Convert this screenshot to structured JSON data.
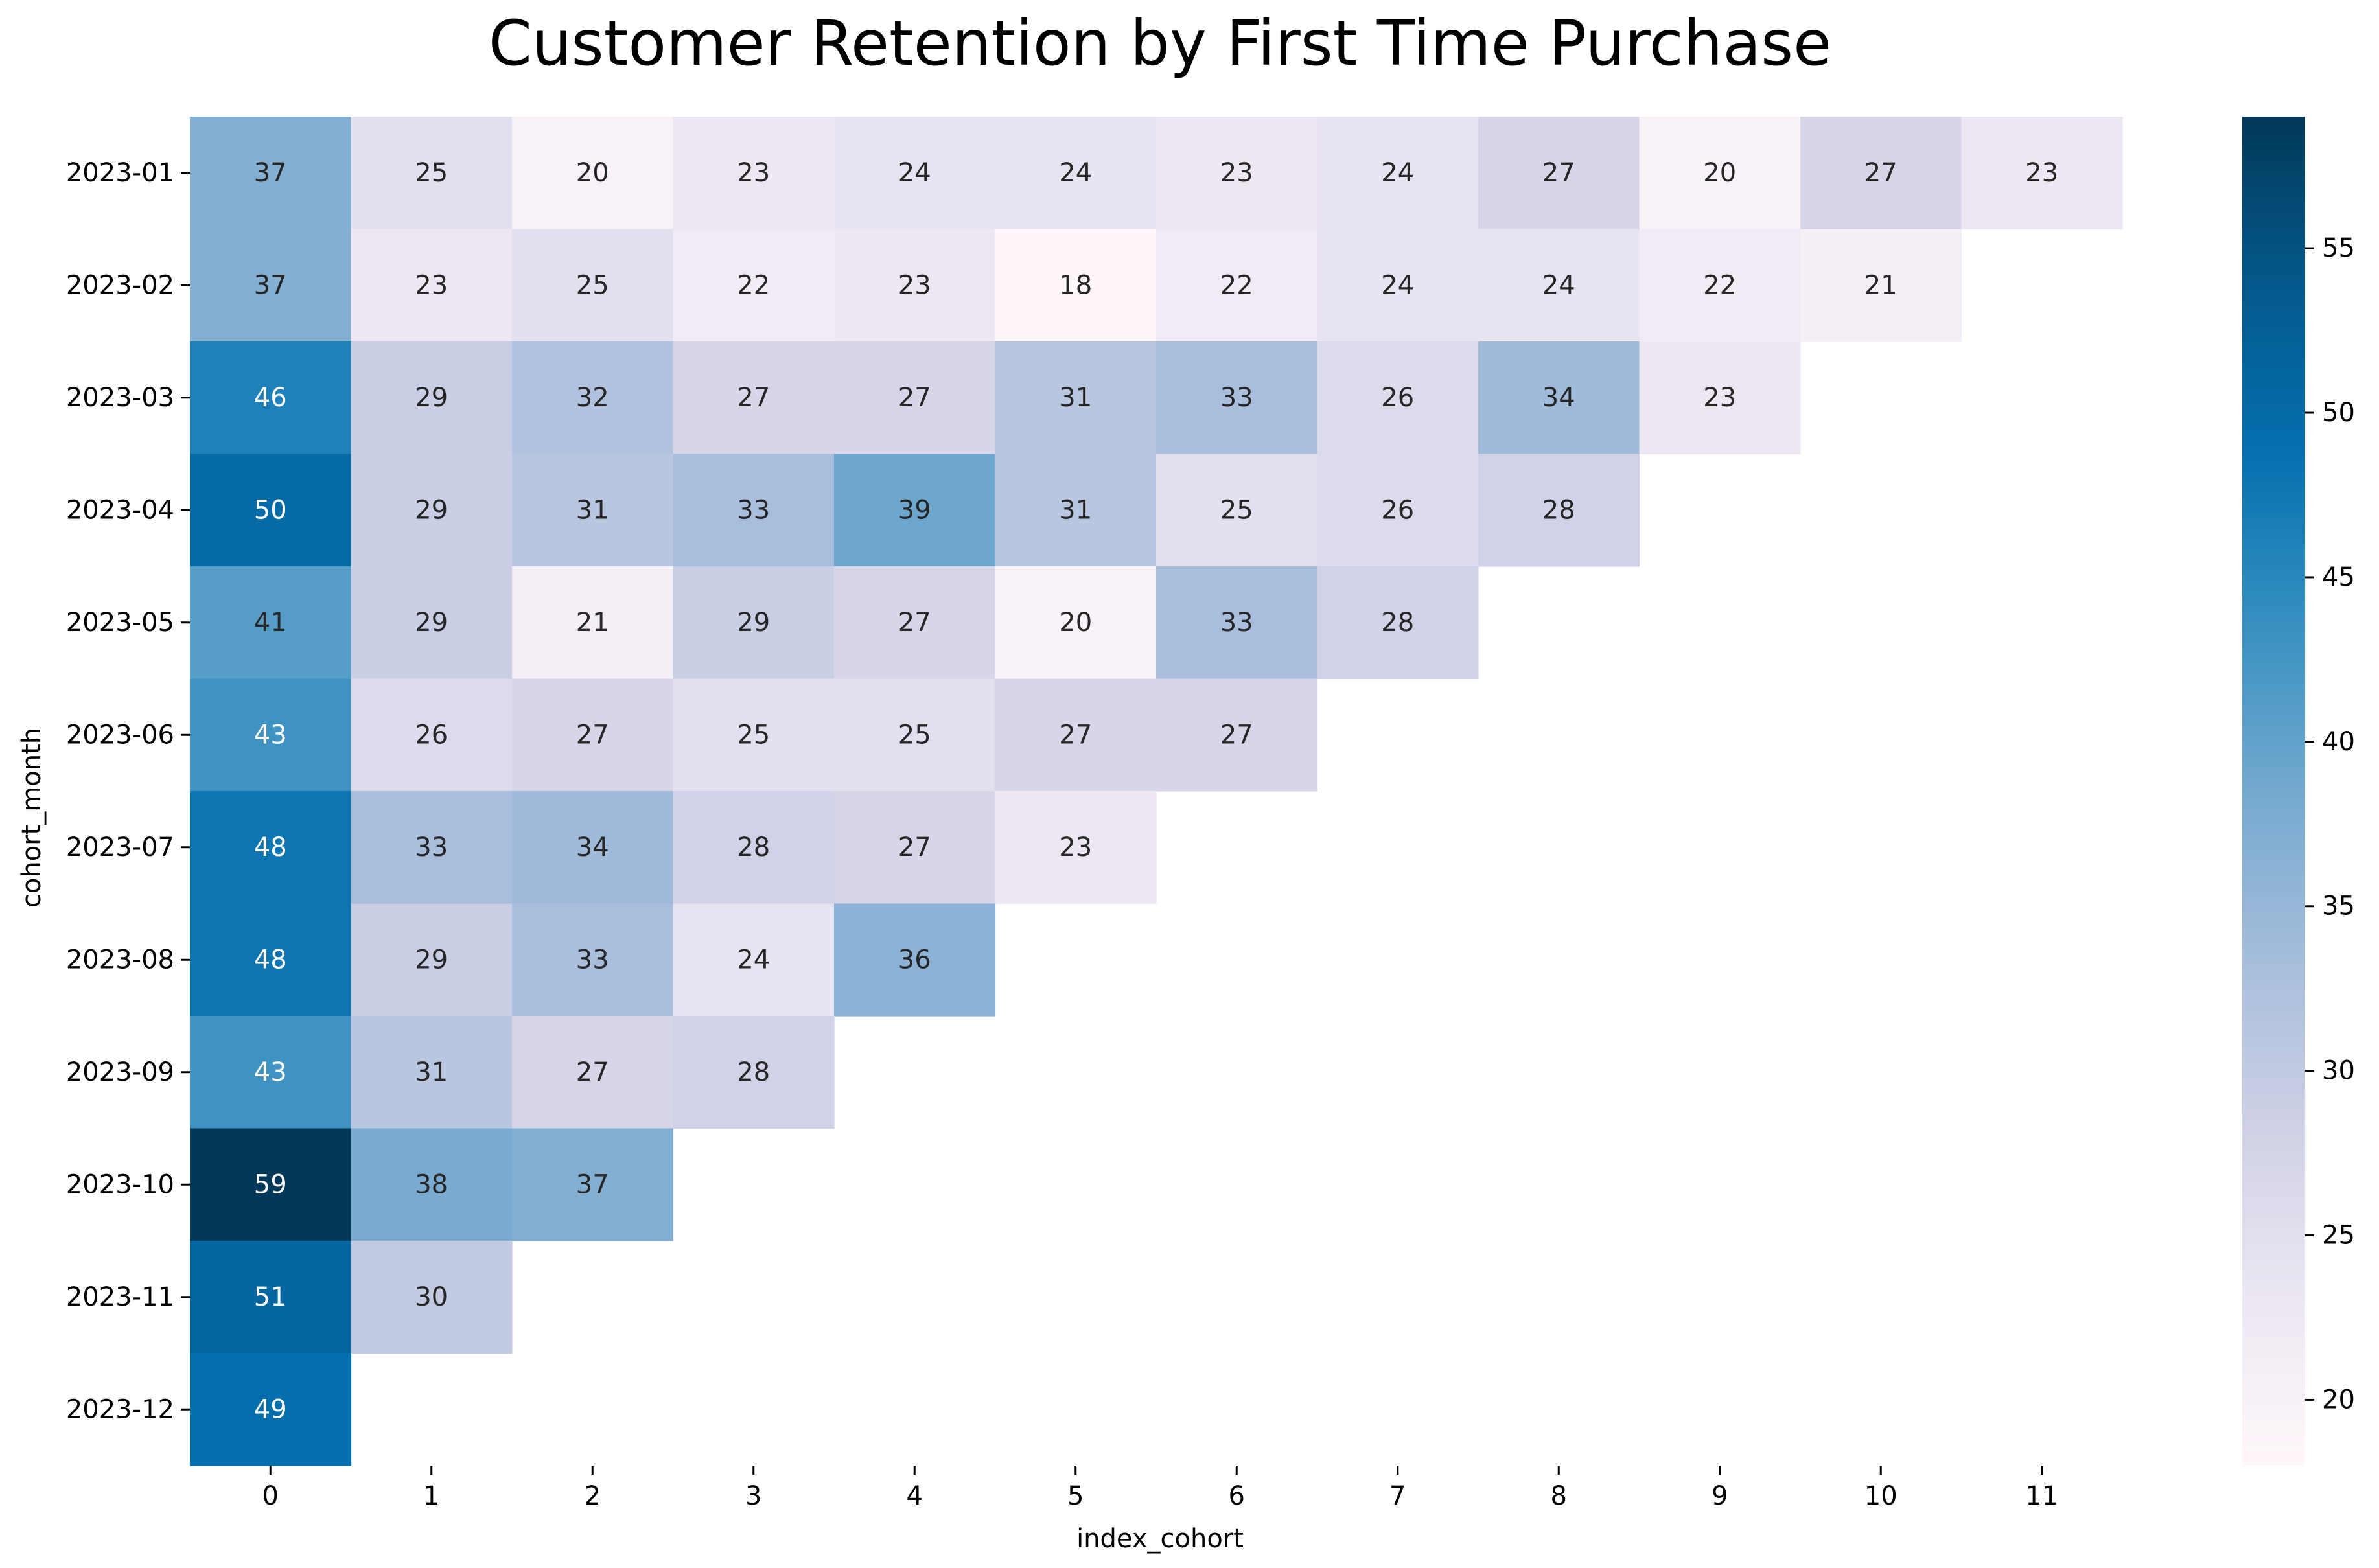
{
  "chart_data": {
    "type": "heatmap",
    "title": "Customer Retention by First Time Purchase",
    "xlabel": "index_cohort",
    "ylabel": "cohort_month",
    "x_categories": [
      "0",
      "1",
      "2",
      "3",
      "4",
      "5",
      "6",
      "7",
      "8",
      "9",
      "10",
      "11"
    ],
    "y_categories": [
      "2023-01",
      "2023-02",
      "2023-03",
      "2023-04",
      "2023-05",
      "2023-06",
      "2023-07",
      "2023-08",
      "2023-09",
      "2023-10",
      "2023-11",
      "2023-12"
    ],
    "values": [
      [
        37,
        25,
        20,
        23,
        24,
        24,
        23,
        24,
        27,
        20,
        27,
        23
      ],
      [
        37,
        23,
        25,
        22,
        23,
        18,
        22,
        24,
        24,
        22,
        21
      ],
      [
        46,
        29,
        32,
        27,
        27,
        31,
        33,
        26,
        34,
        23
      ],
      [
        50,
        29,
        31,
        33,
        39,
        31,
        25,
        26,
        28
      ],
      [
        41,
        29,
        21,
        29,
        27,
        20,
        33,
        28
      ],
      [
        43,
        26,
        27,
        25,
        25,
        27,
        27
      ],
      [
        48,
        33,
        34,
        28,
        27,
        23
      ],
      [
        48,
        29,
        33,
        24,
        36
      ],
      [
        43,
        31,
        27,
        28
      ],
      [
        59,
        38,
        37
      ],
      [
        51,
        30
      ],
      [
        49
      ]
    ],
    "colormap": "PuBu",
    "color_range": [
      18,
      59
    ],
    "colorbar_ticks": [
      20,
      25,
      30,
      35,
      40,
      45,
      50,
      55
    ],
    "annotations": true
  }
}
